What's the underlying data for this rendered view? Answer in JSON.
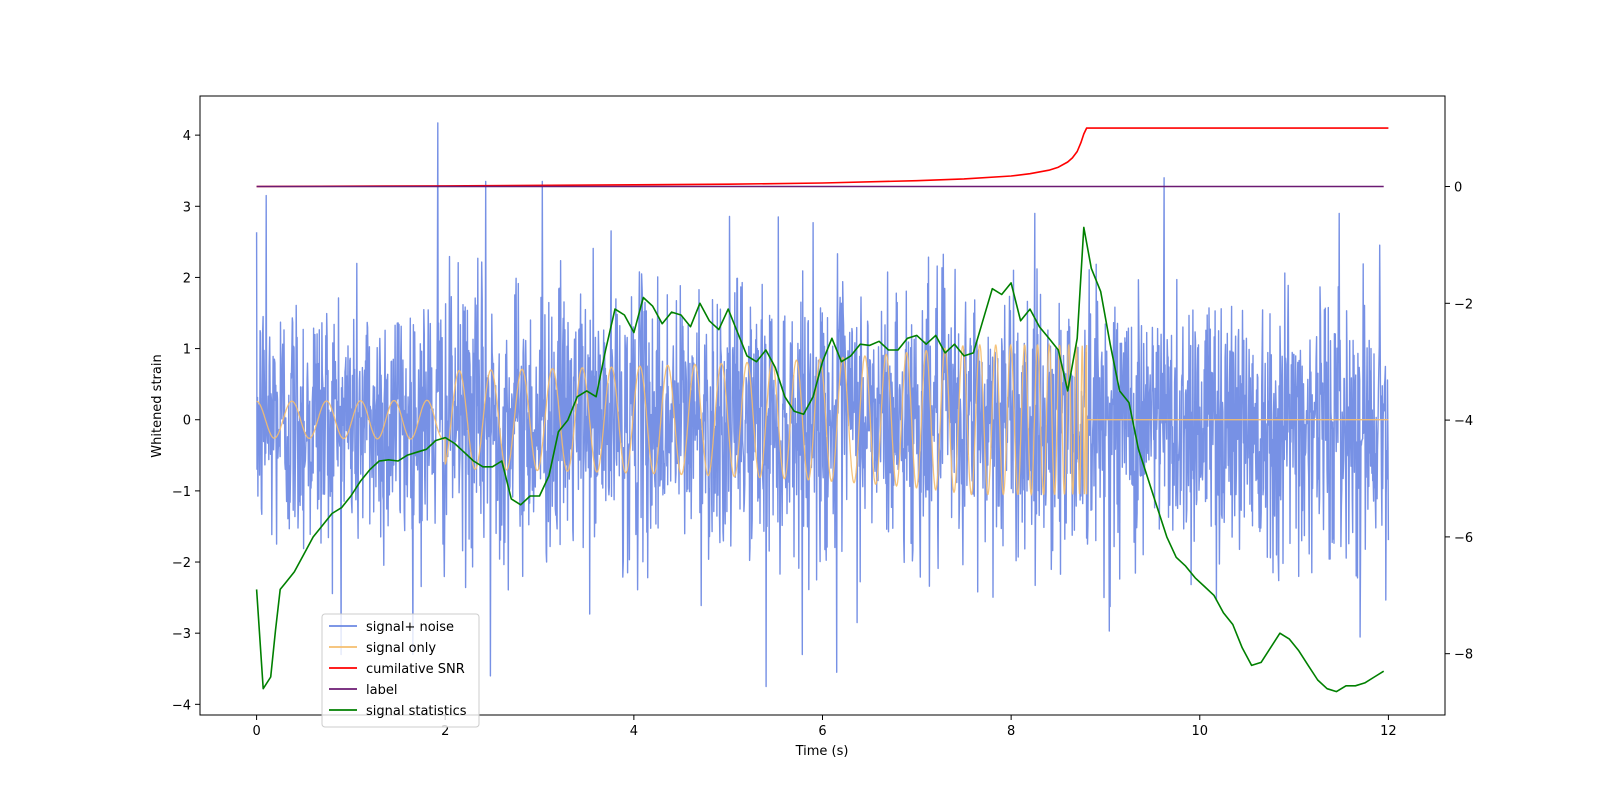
{
  "chart_data": {
    "type": "line",
    "title": "",
    "xlabel": "Time (s)",
    "ylabel": "Whitened strain",
    "y2label": "",
    "xlim": [
      -0.6,
      12.6
    ],
    "ylim": [
      -4.15,
      4.55
    ],
    "y2lim": [
      -9.05,
      1.55
    ],
    "x_ticks": [
      0,
      2,
      4,
      6,
      8,
      10,
      12
    ],
    "x_tick_labels": [
      "0",
      "2",
      "4",
      "6",
      "8",
      "10",
      "12"
    ],
    "y_ticks": [
      4,
      3,
      2,
      1,
      0,
      -1,
      -2,
      -3,
      -4
    ],
    "y_tick_labels": [
      "4",
      "3",
      "2",
      "1",
      "0",
      "−1",
      "−2",
      "−3",
      "−4"
    ],
    "y2_ticks": [
      0,
      -2,
      -4,
      -6,
      -8
    ],
    "y2_tick_labels": [
      "0",
      "−2",
      "−4",
      "−6",
      "−8"
    ],
    "grid": false,
    "legend_position": "bottom-left",
    "noise_seed": 12345,
    "series": [
      {
        "name": "signal+ noise",
        "color": "#6b88e3",
        "axis": "left",
        "kind": "noise",
        "x_range": [
          0,
          12
        ],
        "std": 0.95,
        "spikes": [
          [
            1.92,
            4.17
          ],
          [
            2.43,
            3.35
          ],
          [
            3.03,
            3.35
          ],
          [
            9.62,
            3.4
          ],
          [
            5.4,
            -3.75
          ],
          [
            6.15,
            -3.55
          ],
          [
            2.48,
            -3.6
          ],
          [
            0.1,
            3.15
          ]
        ]
      },
      {
        "name": "signal only",
        "color": "#f5be6e",
        "axis": "left",
        "kind": "chirp",
        "x_range": [
          0,
          12
        ],
        "merger_time": 8.8,
        "peak_amplitude": 1.05,
        "min_amplitude": -1.05
      },
      {
        "name": "cumilative SNR",
        "color": "#ff0000",
        "axis": "right",
        "x": [
          0,
          2,
          4,
          5,
          6,
          7,
          7.5,
          8,
          8.2,
          8.4,
          8.5,
          8.6,
          8.65,
          8.7,
          8.74,
          8.77,
          8.8,
          9,
          10,
          11,
          12
        ],
        "values": [
          0,
          0.01,
          0.03,
          0.04,
          0.06,
          0.1,
          0.13,
          0.18,
          0.22,
          0.28,
          0.33,
          0.42,
          0.49,
          0.6,
          0.75,
          0.9,
          1.0,
          1.0,
          1.0,
          1.0,
          1.0
        ]
      },
      {
        "name": "label",
        "color": "#6b1a73",
        "axis": "right",
        "x": [
          0,
          11.95
        ],
        "values": [
          0,
          0
        ]
      },
      {
        "name": "signal statistics",
        "color": "#008000",
        "axis": "right",
        "x": [
          0,
          0.07,
          0.15,
          0.2,
          0.25,
          0.3,
          0.4,
          0.5,
          0.6,
          0.7,
          0.8,
          0.9,
          1.0,
          1.1,
          1.2,
          1.3,
          1.4,
          1.5,
          1.6,
          1.7,
          1.8,
          1.9,
          2.0,
          2.1,
          2.2,
          2.3,
          2.4,
          2.5,
          2.6,
          2.7,
          2.8,
          2.9,
          3.0,
          3.1,
          3.2,
          3.3,
          3.4,
          3.5,
          3.6,
          3.7,
          3.8,
          3.9,
          4.0,
          4.1,
          4.2,
          4.3,
          4.4,
          4.5,
          4.6,
          4.7,
          4.8,
          4.9,
          5.0,
          5.1,
          5.2,
          5.3,
          5.4,
          5.5,
          5.6,
          5.7,
          5.8,
          5.9,
          6.0,
          6.1,
          6.2,
          6.3,
          6.4,
          6.5,
          6.6,
          6.7,
          6.8,
          6.9,
          7.0,
          7.1,
          7.2,
          7.3,
          7.4,
          7.5,
          7.6,
          7.7,
          7.8,
          7.9,
          8.0,
          8.1,
          8.2,
          8.3,
          8.4,
          8.5,
          8.6,
          8.7,
          8.77,
          8.85,
          8.95,
          9.05,
          9.15,
          9.25,
          9.35,
          9.45,
          9.55,
          9.65,
          9.75,
          9.85,
          9.95,
          10.05,
          10.15,
          10.25,
          10.35,
          10.45,
          10.55,
          10.65,
          10.75,
          10.85,
          10.95,
          11.05,
          11.15,
          11.25,
          11.35,
          11.45,
          11.55,
          11.65,
          11.75,
          11.85,
          11.95
        ],
        "values": [
          -6.9,
          -8.6,
          -8.4,
          -7.6,
          -6.9,
          -6.8,
          -6.6,
          -6.3,
          -6.0,
          -5.8,
          -5.6,
          -5.5,
          -5.3,
          -5.05,
          -4.85,
          -4.7,
          -4.68,
          -4.7,
          -4.6,
          -4.55,
          -4.5,
          -4.35,
          -4.3,
          -4.4,
          -4.55,
          -4.7,
          -4.8,
          -4.8,
          -4.7,
          -5.35,
          -5.45,
          -5.3,
          -5.3,
          -4.95,
          -4.2,
          -4.0,
          -3.6,
          -3.5,
          -3.6,
          -2.8,
          -2.1,
          -2.2,
          -2.5,
          -1.9,
          -2.05,
          -2.35,
          -2.15,
          -2.2,
          -2.4,
          -2.0,
          -2.3,
          -2.45,
          -2.1,
          -2.5,
          -2.9,
          -3.0,
          -2.8,
          -3.1,
          -3.6,
          -3.85,
          -3.9,
          -3.6,
          -3.0,
          -2.6,
          -3.0,
          -2.9,
          -2.7,
          -2.72,
          -2.65,
          -2.8,
          -2.8,
          -2.6,
          -2.55,
          -2.7,
          -2.55,
          -2.85,
          -2.7,
          -2.9,
          -2.85,
          -2.3,
          -1.75,
          -1.85,
          -1.65,
          -2.3,
          -2.1,
          -2.4,
          -2.6,
          -2.8,
          -3.5,
          -2.6,
          -0.7,
          -1.4,
          -1.8,
          -2.7,
          -3.5,
          -3.7,
          -4.5,
          -5.0,
          -5.5,
          -6.0,
          -6.35,
          -6.5,
          -6.7,
          -6.85,
          -7.0,
          -7.3,
          -7.5,
          -7.9,
          -8.2,
          -8.15,
          -7.9,
          -7.65,
          -7.75,
          -7.95,
          -8.2,
          -8.45,
          -8.6,
          -8.65,
          -8.55,
          -8.55,
          -8.5,
          -8.4,
          -8.3
        ]
      }
    ]
  }
}
